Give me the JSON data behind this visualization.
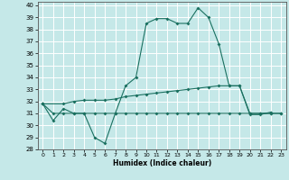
{
  "xlabel": "Humidex (Indice chaleur)",
  "xlim": [
    -0.5,
    23.5
  ],
  "ylim": [
    28,
    40.3
  ],
  "yticks": [
    28,
    29,
    30,
    31,
    32,
    33,
    34,
    35,
    36,
    37,
    38,
    39,
    40
  ],
  "xticks": [
    0,
    1,
    2,
    3,
    4,
    5,
    6,
    7,
    8,
    9,
    10,
    11,
    12,
    13,
    14,
    15,
    16,
    17,
    18,
    19,
    20,
    21,
    22,
    23
  ],
  "bg_color": "#c5e8e8",
  "grid_color": "#ffffff",
  "line_color": "#1a7060",
  "line1_x": [
    0,
    1,
    2,
    3,
    4,
    5,
    6,
    7,
    8,
    9,
    10,
    11,
    12,
    13,
    14,
    15,
    16,
    17,
    18,
    19,
    20,
    21,
    22
  ],
  "line1_y": [
    31.8,
    30.4,
    31.4,
    31.0,
    31.0,
    29.0,
    28.5,
    31.0,
    33.3,
    34.0,
    38.5,
    38.9,
    38.9,
    38.5,
    38.5,
    39.8,
    39.0,
    36.8,
    33.3,
    33.3,
    30.9,
    30.9,
    31.1
  ],
  "line2_x": [
    0,
    2,
    3,
    4,
    5,
    6,
    7,
    8,
    9,
    10,
    11,
    12,
    13,
    14,
    15,
    16,
    17,
    18,
    19,
    20,
    21,
    22,
    23
  ],
  "line2_y": [
    31.8,
    31.8,
    32.0,
    32.1,
    32.1,
    32.1,
    32.2,
    32.4,
    32.5,
    32.6,
    32.7,
    32.8,
    32.9,
    33.0,
    33.1,
    33.2,
    33.3,
    33.3,
    33.3,
    31.0,
    31.0,
    31.0,
    31.0
  ],
  "line3_x": [
    0,
    1,
    2,
    3,
    4,
    5,
    6,
    7,
    8,
    9,
    10,
    11,
    12,
    13,
    14,
    15,
    16,
    17,
    18,
    19,
    20,
    21,
    22,
    23
  ],
  "line3_y": [
    31.8,
    31.0,
    31.0,
    31.0,
    31.0,
    31.0,
    31.0,
    31.0,
    31.0,
    31.0,
    31.0,
    31.0,
    31.0,
    31.0,
    31.0,
    31.0,
    31.0,
    31.0,
    31.0,
    31.0,
    31.0,
    31.0,
    31.0,
    31.0
  ]
}
